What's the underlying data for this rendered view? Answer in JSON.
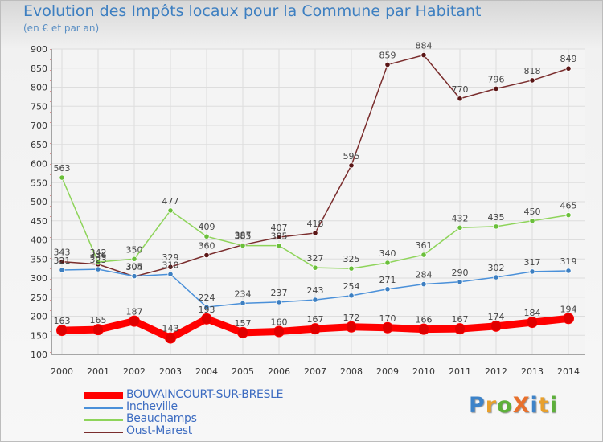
{
  "title": "Evolution des Impôts locaux pour la Commune par Habitant",
  "subtitle": "(en € et par an)",
  "logo": {
    "text": "ProXiti",
    "colors": [
      "#3d83c9",
      "#e8a02c",
      "#5db03a",
      "#e8702c",
      "#3d83c9",
      "#e8a02c",
      "#5db03a"
    ]
  },
  "chart_data": {
    "type": "line",
    "title": "Evolution des Impôts locaux pour la Commune par Habitant",
    "subtitle": "(en € et par an)",
    "xlabel": "",
    "ylabel": "",
    "x": [
      "2000",
      "2001",
      "2002",
      "2003",
      "2004",
      "2005",
      "2006",
      "2007",
      "2008",
      "2009",
      "2010",
      "2011",
      "2012",
      "2013",
      "2014"
    ],
    "ylim": [
      100,
      900
    ],
    "yticks": [
      "100",
      "150",
      "200",
      "250",
      "300",
      "350",
      "400",
      "450",
      "500",
      "550",
      "600",
      "650",
      "700",
      "750",
      "800",
      "850",
      "900"
    ],
    "grid": true,
    "legend_position": "bottom-left",
    "series": [
      {
        "name": "BOUVAINCOURT-SUR-BRESLE",
        "color": "#ff0000",
        "marker_color": "#e00000",
        "thick": true,
        "values": [
          163,
          165,
          187,
          143,
          193,
          157,
          160,
          167,
          172,
          170,
          166,
          167,
          174,
          184,
          194
        ],
        "labels": [
          "163",
          "165",
          "187",
          "143",
          "193",
          "157",
          "160",
          "167",
          "172",
          "170",
          "166",
          "167",
          "174",
          "184",
          "194"
        ]
      },
      {
        "name": "Incheville",
        "color": "#4a90d9",
        "marker_color": "#3d7fc1",
        "thick": false,
        "values": [
          321,
          323,
          305,
          310,
          224,
          234,
          237,
          243,
          254,
          271,
          284,
          290,
          302,
          317,
          319
        ],
        "labels": [
          "321",
          "323",
          "305",
          "310",
          "224",
          "234",
          "237",
          "243",
          "254",
          "271",
          "284",
          "290",
          "302",
          "317",
          "319"
        ]
      },
      {
        "name": "Beauchamps",
        "color": "#8ed45a",
        "marker_color": "#6abf3a",
        "thick": false,
        "values": [
          563,
          342,
          350,
          477,
          409,
          385,
          385,
          327,
          325,
          340,
          361,
          432,
          435,
          450,
          465
        ],
        "labels": [
          "563",
          "342",
          "350",
          "477",
          "409",
          "385",
          "385",
          "327",
          "325",
          "340",
          "361",
          "432",
          "435",
          "450",
          "465"
        ]
      },
      {
        "name": "Oust-Marest",
        "color": "#7a2d2d",
        "marker_color": "#5a1515",
        "thick": false,
        "values": [
          343,
          336,
          304,
          329,
          360,
          387,
          407,
          418,
          595,
          859,
          884,
          770,
          796,
          818,
          849
        ],
        "labels": [
          "343",
          "336",
          "304",
          "329",
          "360",
          "387",
          "407",
          "418",
          "595",
          "859",
          "884",
          "770",
          "796",
          "818",
          "849"
        ]
      }
    ]
  }
}
